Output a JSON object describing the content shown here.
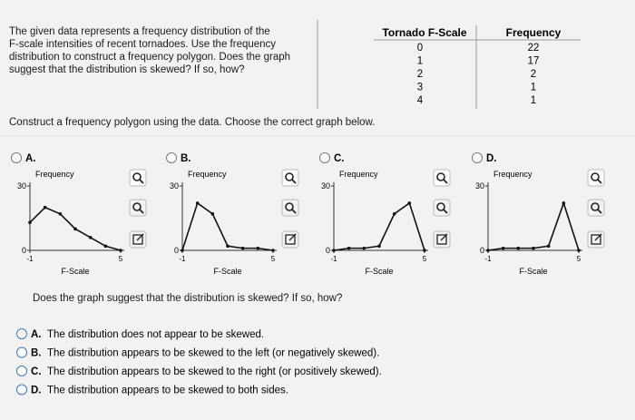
{
  "question": {
    "lines": [
      "The given data represents a frequency distribution of the",
      "F-scale intensities of recent tornadoes. Use the frequency",
      "distribution to construct a frequency polygon. Does the graph",
      "suggest that the distribution is skewed? If so, how?"
    ]
  },
  "table": {
    "headers": [
      "Tornado F-Scale",
      "Frequency"
    ],
    "rows": [
      [
        0,
        22
      ],
      [
        1,
        17
      ],
      [
        2,
        2
      ],
      [
        3,
        1
      ],
      [
        4,
        1
      ]
    ]
  },
  "instruction": "Construct a frequency polygon using the data. Choose the correct graph below.",
  "graph_options": [
    {
      "label": "A.",
      "ylabel": "Frequency",
      "xlabel": "F-Scale",
      "xlim": [
        -1,
        5
      ],
      "ylim": [
        0,
        30
      ],
      "xticks": [
        -1,
        5
      ],
      "yticks": [
        0,
        30
      ],
      "x": [
        -1,
        0,
        1,
        2,
        3,
        4,
        5
      ],
      "values": [
        13,
        20,
        17,
        10,
        6,
        2,
        0
      ]
    },
    {
      "label": "B.",
      "ylabel": "Frequency",
      "xlabel": "F-Scale",
      "xlim": [
        -1,
        5
      ],
      "ylim": [
        0,
        30
      ],
      "xticks": [
        -1,
        5
      ],
      "yticks": [
        0,
        30
      ],
      "x": [
        -1,
        0,
        1,
        2,
        3,
        4,
        5
      ],
      "values": [
        0,
        22,
        17,
        2,
        1,
        1,
        0
      ]
    },
    {
      "label": "C.",
      "ylabel": "Frequency",
      "xlabel": "F-Scale",
      "xlim": [
        -1,
        5
      ],
      "ylim": [
        0,
        30
      ],
      "xticks": [
        -1,
        5
      ],
      "yticks": [
        0,
        30
      ],
      "x": [
        -1,
        0,
        1,
        2,
        3,
        4,
        5
      ],
      "values": [
        0,
        1,
        1,
        2,
        17,
        22,
        0
      ]
    },
    {
      "label": "D.",
      "ylabel": "Frequency",
      "xlabel": "F-Scale",
      "xlim": [
        -1,
        5
      ],
      "ylim": [
        0,
        30
      ],
      "xticks": [
        -1,
        5
      ],
      "yticks": [
        0,
        30
      ],
      "x": [
        -1,
        0,
        1,
        2,
        3,
        4,
        5
      ],
      "values": [
        0,
        1,
        1,
        1,
        2,
        22,
        0
      ]
    }
  ],
  "question2": "Does the graph suggest that the distribution is skewed? If so, how?",
  "choices": [
    {
      "letter": "A.",
      "text": "The distribution does not appear to be skewed."
    },
    {
      "letter": "B.",
      "text": "The distribution appears to be skewed to the left (or negatively skewed)."
    },
    {
      "letter": "C.",
      "text": "The distribution appears to be skewed to the right (or positively skewed)."
    },
    {
      "letter": "D.",
      "text": "The distribution appears to be skewed to both sides."
    }
  ]
}
